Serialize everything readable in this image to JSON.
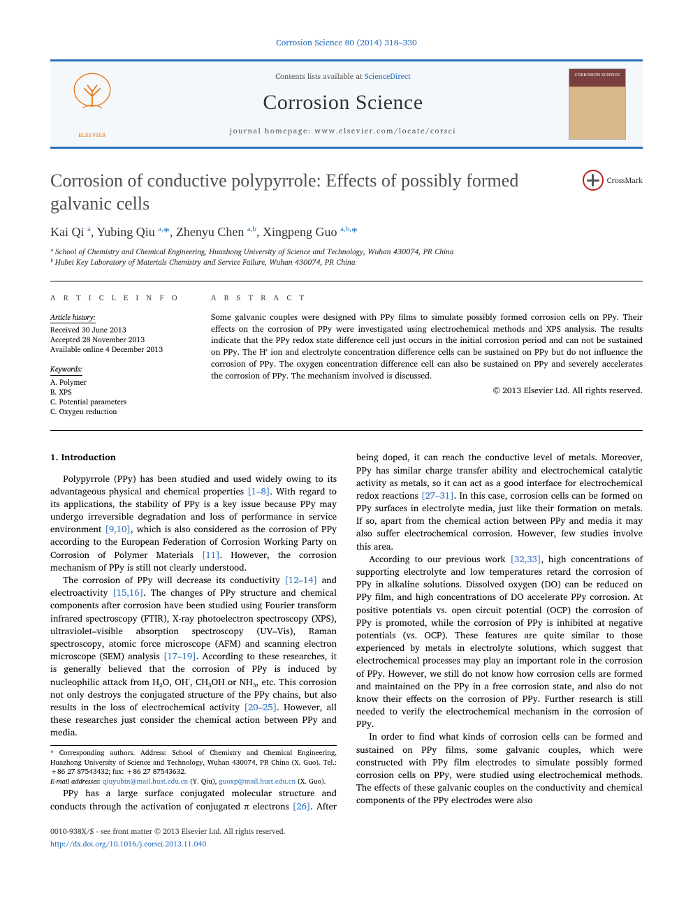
{
  "citation": "Corrosion Science 80 (2014) 318–330",
  "header": {
    "contents_prefix": "Contents lists available at ",
    "contents_link": "ScienceDirect",
    "journal": "Corrosion Science",
    "homepage_prefix": "journal homepage: ",
    "homepage_url": "www.elsevier.com/locate/corsci",
    "cover_label": "CORROSION SCIENCE",
    "publisher_logo": "ELSEVIER"
  },
  "title": "Corrosion of conductive polypyrrole: Effects of possibly formed galvanic cells",
  "crossmark": "CrossMark",
  "authors_html": "Kai Qi <sup>a</sup>, Yubing Qiu <sup>a,</sup><span class='ast'>*</span>, Zhenyu Chen <sup>a,b</sup>, Xingpeng Guo <sup>a,b,</sup><span class='ast'>*</span>",
  "affiliations": [
    "ᵃ School of Chemistry and Chemical Engineering, Huazhong University of Science and Technology, Wuhan 430074, PR China",
    "ᵇ Hubei Key Laboratory of Materials Chemistry and Service Failure, Wuhan 430074, PR China"
  ],
  "info": {
    "heading": "A R T I C L E   I N F O",
    "history_label": "Article history:",
    "history": [
      "Received 30 June 2013",
      "Accepted 28 November 2013",
      "Available online 4 December 2013"
    ],
    "keywords_label": "Keywords:",
    "keywords": [
      "A. Polymer",
      "B. XPS",
      "C. Potential parameters",
      "C. Oxygen reduction"
    ]
  },
  "abstract": {
    "heading": "A B S T R A C T",
    "text": "Some galvanic couples were designed with PPy films to simulate possibly formed corrosion cells on PPy. Their effects on the corrosion of PPy were investigated using electrochemical methods and XPS analysis. The results indicate that the PPy redox state difference cell just occurs in the initial corrosion period and can not be sustained on PPy. The H⁺ ion and electrolyte concentration difference cells can be sustained on PPy but do not influence the corrosion of PPy. The oxygen concentration difference cell can also be sustained on PPy and severely accelerates the corrosion of PPy. The mechanism involved is discussed.",
    "copyright": "© 2013 Elsevier Ltd. All rights reserved."
  },
  "section1": {
    "heading": "1. Introduction",
    "p1a": "Polypyrrole (PPy) has been studied and used widely owing to its advantageous physical and chemical properties ",
    "r1": "[1–8]",
    "p1b": ". With regard to its applications, the stability of PPy is a key issue because PPy may undergo irreversible degradation and loss of performance in service environment ",
    "r2": "[9,10]",
    "p1c": ", which is also considered as the corrosion of PPy according to the European Federation of Corrosion Working Party on Corrosion of Polymer Materials ",
    "r3": "[11]",
    "p1d": ". However, the corrosion mechanism of PPy is still not clearly understood.",
    "p2a": "The corrosion of PPy will decrease its conductivity ",
    "r4": "[12–14]",
    "p2b": " and electroactivity ",
    "r5": "[15,16]",
    "p2c": ". The changes of PPy structure and chemical components after corrosion have been studied using Fourier transform infrared spectroscopy (FTIR), X-ray photoelectron spectroscopy (XPS), ultraviolet–visible absorption spectroscopy (UV–Vis), Raman spectroscopy, atomic force microscope (AFM) and scanning electron microscope (SEM) analysis ",
    "r6": "[17–19]",
    "p2d": ". According to these researches, it is generally believed that the corrosion of PPy is induced by nucleophilic attack from H₂O, OH⁻, CH₃OH or NH₃, etc. This corrosion not only destroys the conjugated structure of the PPy chains, but also results in the loss of electrochemical activity ",
    "r7": "[20–25]",
    "p2e": ". However, all these researches just consider the chemical action between PPy and media.",
    "p3a": "PPy has a large surface conjugated molecular structure and conducts through the activation of conjugated π electrons ",
    "r8": "[26]",
    "p3b": ". After being doped, it can reach the conductive level of metals. Moreover, PPy has similar charge transfer ability and electrochemical catalytic activity as metals, so it can act as a good interface for electrochemical redox reactions ",
    "r9": "[27–31]",
    "p3c": ". In this case, corrosion cells can be formed on PPy surfaces in electrolyte media, just like their formation on metals. If so, apart from the chemical action between PPy and media it may also suffer electrochemical corrosion. However, few studies involve this area.",
    "p4a": "According to our previous work ",
    "r10": "[32,33]",
    "p4b": ", high concentrations of supporting electrolyte and low temperatures retard the corrosion of PPy in alkaline solutions. Dissolved oxygen (DO) can be reduced on PPy film, and high concentrations of DO accelerate PPy corrosion. At positive potentials vs. open circuit potential (OCP) the corrosion of PPy is promoted, while the corrosion of PPy is inhibited at negative potentials (vs. OCP). These features are quite similar to those experienced by metals in electrolyte solutions, which suggest that electrochemical processes may play an important role in the corrosion of PPy. However, we still do not know how corrosion cells are formed and maintained on the PPy in a free corrosion state, and also do not know their effects on the corrosion of PPy. Further research is still needed to verify the electrochemical mechanism in the corrosion of PPy.",
    "p5": "In order to find what kinds of corrosion cells can be formed and sustained on PPy films, some galvanic couples, which were constructed with PPy film electrodes to simulate possibly formed corrosion cells on PPy, were studied using electrochemical methods. The effects of these galvanic couples on the conductivity and chemical components of the PPy electrodes were also"
  },
  "footnotes": {
    "corr": "* Corresponding authors. Address: School of Chemistry and Chemical Engineering, Huazhong University of Science and Technology, Wuhan 430074, PR China (X. Guo). Tel.: +86 27 87543432; fax: +86 27 87543632.",
    "email_label": "E-mail addresses: ",
    "email1": "qiuyubin@mail.hust.edu.cn",
    "email1_who": " (Y. Qiu), ",
    "email2": "guoxp@mail.hust.edu.cn",
    "email2_who": " (X. Guo)."
  },
  "footer": {
    "left1": "0010-938X/$ - see front matter © 2013 Elsevier Ltd. All rights reserved.",
    "left2_pre": "",
    "doi": "http://dx.doi.org/10.1016/j.corsci.2013.11.040"
  },
  "colors": {
    "link": "#2a6ebb",
    "rule": "#000000",
    "title": "#505050",
    "elsevier_orange": "#e67817"
  }
}
